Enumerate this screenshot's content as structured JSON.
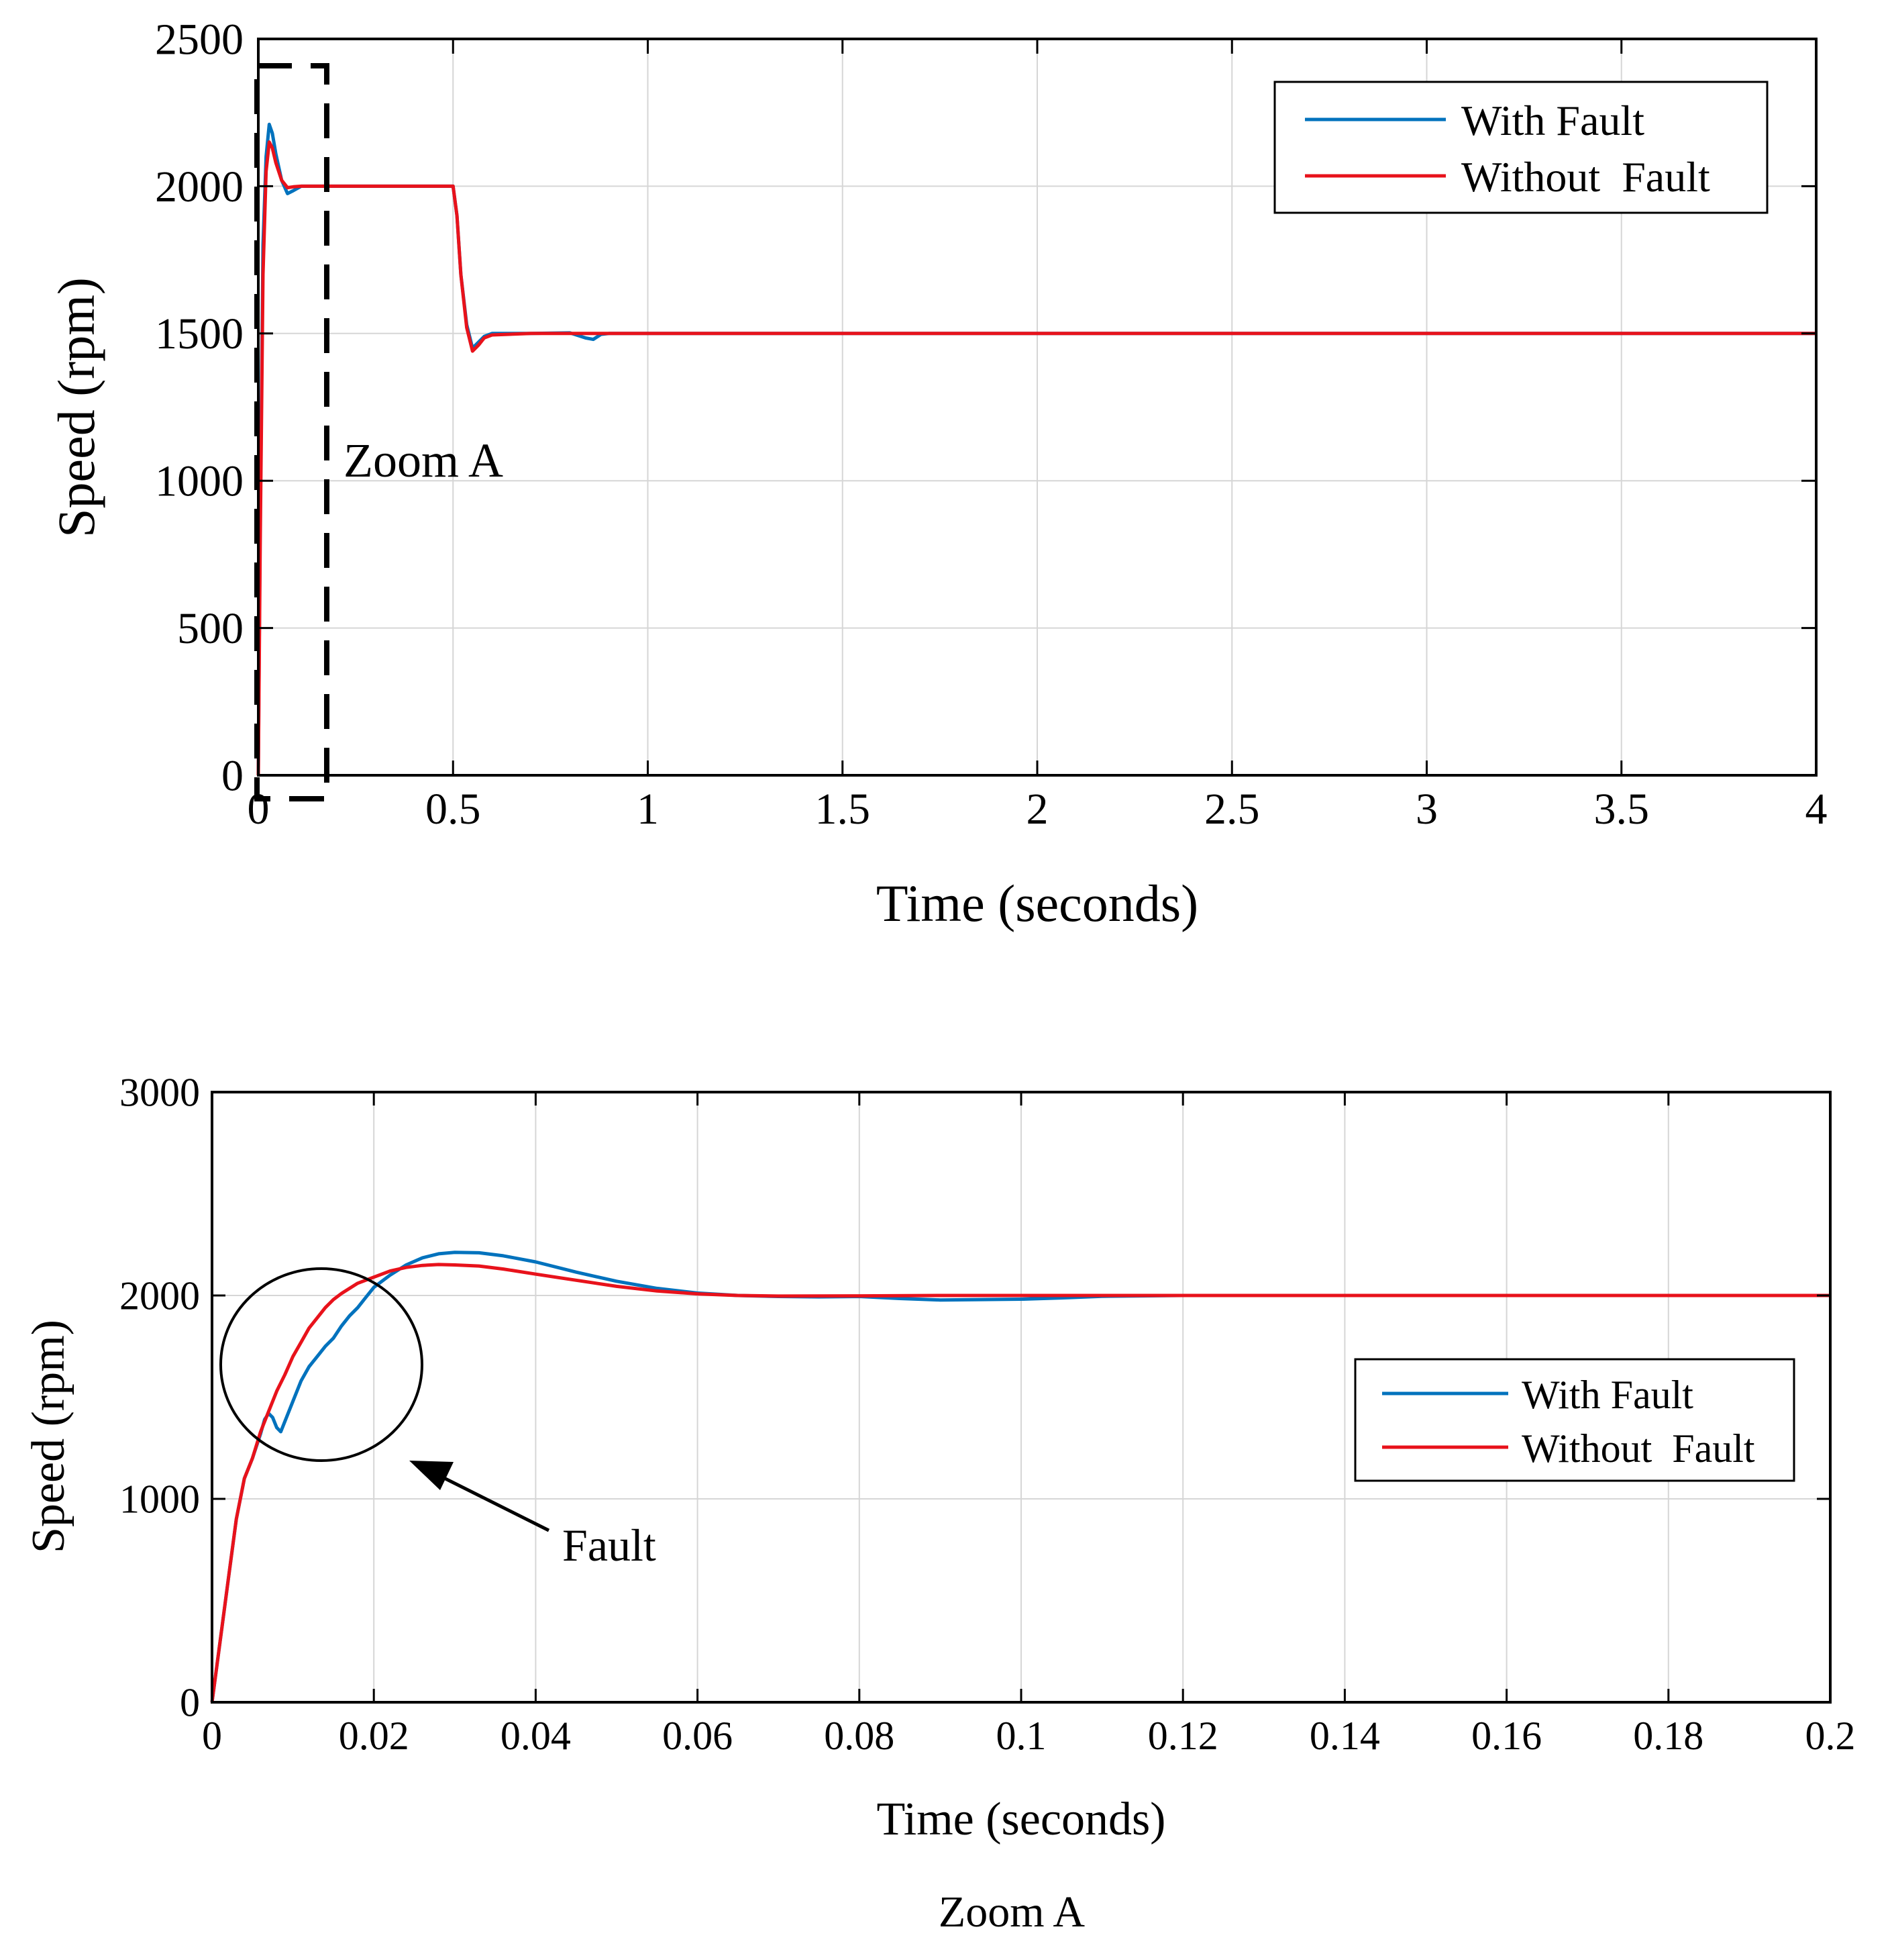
{
  "colors": {
    "with_fault": "#0072BD",
    "without_fault": "#E8121B",
    "grid": "#d6d6d6",
    "axis": "#000000"
  },
  "chart_data": [
    {
      "id": "full",
      "type": "line",
      "xlabel": "Time (seconds)",
      "ylabel": "Speed (rpm)",
      "xlim": [
        0,
        4
      ],
      "ylim": [
        0,
        2500
      ],
      "xticks": [
        0,
        0.5,
        1,
        1.5,
        2,
        2.5,
        3,
        3.5,
        4
      ],
      "xtick_labels": [
        "0",
        "0.5",
        "1",
        "1.5",
        "2",
        "2.5",
        "3",
        "3.5",
        "4"
      ],
      "yticks": [
        0,
        500,
        1000,
        1500,
        2000,
        2500
      ],
      "ytick_labels": [
        "0",
        "500",
        "1000",
        "1500",
        "2000",
        "2500"
      ],
      "grid": true,
      "legend": "top-right",
      "annotations": [
        {
          "text": "Zoom A",
          "type": "dashed-box",
          "xrange": [
            0,
            0.18
          ],
          "yrange": [
            -80,
            2400
          ]
        }
      ],
      "series": [
        {
          "name": "With Fault",
          "color": "#0072BD",
          "points": [
            [
              0,
              0
            ],
            [
              0.005,
              900
            ],
            [
              0.012,
              1800
            ],
            [
              0.02,
              2100
            ],
            [
              0.028,
              2210
            ],
            [
              0.036,
              2180
            ],
            [
              0.045,
              2110
            ],
            [
              0.06,
              2020
            ],
            [
              0.075,
              1975
            ],
            [
              0.09,
              1985
            ],
            [
              0.11,
              2000
            ],
            [
              0.2,
              2000
            ],
            [
              0.3,
              2000
            ],
            [
              0.4,
              2000
            ],
            [
              0.5,
              2000
            ],
            [
              0.51,
              1900
            ],
            [
              0.52,
              1700
            ],
            [
              0.535,
              1530
            ],
            [
              0.55,
              1450
            ],
            [
              0.565,
              1470
            ],
            [
              0.58,
              1490
            ],
            [
              0.6,
              1500
            ],
            [
              0.7,
              1500
            ],
            [
              0.8,
              1502
            ],
            [
              0.84,
              1485
            ],
            [
              0.86,
              1480
            ],
            [
              0.88,
              1497
            ],
            [
              0.9,
              1500
            ],
            [
              1.5,
              1500
            ],
            [
              2,
              1500
            ],
            [
              2.5,
              1500
            ],
            [
              3,
              1500
            ],
            [
              3.5,
              1500
            ],
            [
              4,
              1500
            ]
          ]
        },
        {
          "name": "Without  Fault",
          "color": "#E8121B",
          "points": [
            [
              0,
              0
            ],
            [
              0.005,
              800
            ],
            [
              0.012,
              1700
            ],
            [
              0.02,
              2050
            ],
            [
              0.028,
              2150
            ],
            [
              0.036,
              2130
            ],
            [
              0.045,
              2080
            ],
            [
              0.06,
              2020
            ],
            [
              0.075,
              1995
            ],
            [
              0.09,
              1998
            ],
            [
              0.11,
              2000
            ],
            [
              0.2,
              2000
            ],
            [
              0.3,
              2000
            ],
            [
              0.4,
              2000
            ],
            [
              0.5,
              2000
            ],
            [
              0.51,
              1900
            ],
            [
              0.52,
              1700
            ],
            [
              0.535,
              1520
            ],
            [
              0.55,
              1440
            ],
            [
              0.565,
              1460
            ],
            [
              0.58,
              1485
            ],
            [
              0.6,
              1495
            ],
            [
              0.7,
              1500
            ],
            [
              0.9,
              1500
            ],
            [
              1.5,
              1500
            ],
            [
              2,
              1500
            ],
            [
              2.5,
              1500
            ],
            [
              3,
              1500
            ],
            [
              3.5,
              1500
            ],
            [
              4,
              1500
            ]
          ]
        }
      ]
    },
    {
      "id": "zoom",
      "type": "line",
      "title": "Zoom A",
      "xlabel": "Time (seconds)",
      "ylabel": "Speed (rpm)",
      "xlim": [
        0,
        0.2
      ],
      "ylim": [
        0,
        3000
      ],
      "xticks": [
        0,
        0.02,
        0.04,
        0.06,
        0.08,
        0.1,
        0.12,
        0.14,
        0.16,
        0.18,
        0.2
      ],
      "xtick_labels": [
        "0",
        "0.02",
        "0.04",
        "0.06",
        "0.08",
        "0.1",
        "0.12",
        "0.14",
        "0.16",
        "0.18",
        "0.2"
      ],
      "yticks": [
        0,
        1000,
        2000,
        3000
      ],
      "ytick_labels": [
        "0",
        "1000",
        "2000",
        "3000"
      ],
      "grid": true,
      "legend": "right",
      "annotations": [
        {
          "text": "Fault",
          "type": "circle-arrow",
          "center": [
            0.0137,
            1670
          ],
          "arrow_to": [
            0.0245,
            1200
          ]
        }
      ],
      "series": [
        {
          "name": "With Fault",
          "color": "#0072BD",
          "points": [
            [
              0,
              0
            ],
            [
              0.001,
              300
            ],
            [
              0.002,
              600
            ],
            [
              0.003,
              900
            ],
            [
              0.004,
              1100
            ],
            [
              0.005,
              1200
            ],
            [
              0.006,
              1320
            ],
            [
              0.0065,
              1390
            ],
            [
              0.007,
              1420
            ],
            [
              0.0075,
              1400
            ],
            [
              0.008,
              1350
            ],
            [
              0.0085,
              1330
            ],
            [
              0.009,
              1380
            ],
            [
              0.01,
              1480
            ],
            [
              0.011,
              1580
            ],
            [
              0.012,
              1650
            ],
            [
              0.013,
              1700
            ],
            [
              0.014,
              1750
            ],
            [
              0.015,
              1790
            ],
            [
              0.016,
              1850
            ],
            [
              0.017,
              1900
            ],
            [
              0.018,
              1940
            ],
            [
              0.019,
              1990
            ],
            [
              0.02,
              2040
            ],
            [
              0.022,
              2100
            ],
            [
              0.024,
              2150
            ],
            [
              0.026,
              2185
            ],
            [
              0.028,
              2205
            ],
            [
              0.03,
              2212
            ],
            [
              0.033,
              2210
            ],
            [
              0.036,
              2195
            ],
            [
              0.04,
              2165
            ],
            [
              0.045,
              2115
            ],
            [
              0.05,
              2070
            ],
            [
              0.055,
              2035
            ],
            [
              0.06,
              2012
            ],
            [
              0.065,
              2000
            ],
            [
              0.07,
              1995
            ],
            [
              0.075,
              1993
            ],
            [
              0.08,
              1995
            ],
            [
              0.085,
              1985
            ],
            [
              0.09,
              1978
            ],
            [
              0.095,
              1980
            ],
            [
              0.1,
              1982
            ],
            [
              0.105,
              1988
            ],
            [
              0.11,
              1996
            ],
            [
              0.12,
              2000
            ],
            [
              0.14,
              2000
            ],
            [
              0.16,
              2000
            ],
            [
              0.18,
              2000
            ],
            [
              0.2,
              2000
            ]
          ]
        },
        {
          "name": "Without  Fault",
          "color": "#E8121B",
          "points": [
            [
              0,
              0
            ],
            [
              0.001,
              300
            ],
            [
              0.002,
              600
            ],
            [
              0.003,
              900
            ],
            [
              0.004,
              1100
            ],
            [
              0.005,
              1200
            ],
            [
              0.006,
              1330
            ],
            [
              0.007,
              1430
            ],
            [
              0.008,
              1530
            ],
            [
              0.009,
              1610
            ],
            [
              0.01,
              1700
            ],
            [
              0.011,
              1770
            ],
            [
              0.012,
              1840
            ],
            [
              0.013,
              1890
            ],
            [
              0.014,
              1940
            ],
            [
              0.015,
              1980
            ],
            [
              0.016,
              2010
            ],
            [
              0.018,
              2060
            ],
            [
              0.02,
              2090
            ],
            [
              0.022,
              2120
            ],
            [
              0.024,
              2138
            ],
            [
              0.026,
              2148
            ],
            [
              0.028,
              2152
            ],
            [
              0.03,
              2150
            ],
            [
              0.033,
              2145
            ],
            [
              0.036,
              2130
            ],
            [
              0.04,
              2105
            ],
            [
              0.045,
              2075
            ],
            [
              0.05,
              2045
            ],
            [
              0.055,
              2022
            ],
            [
              0.06,
              2008
            ],
            [
              0.065,
              2000
            ],
            [
              0.07,
              1997
            ],
            [
              0.08,
              1998
            ],
            [
              0.09,
              2000
            ],
            [
              0.1,
              2000
            ],
            [
              0.12,
              2000
            ],
            [
              0.14,
              2000
            ],
            [
              0.16,
              2000
            ],
            [
              0.18,
              2000
            ],
            [
              0.2,
              2000
            ]
          ]
        }
      ]
    }
  ]
}
